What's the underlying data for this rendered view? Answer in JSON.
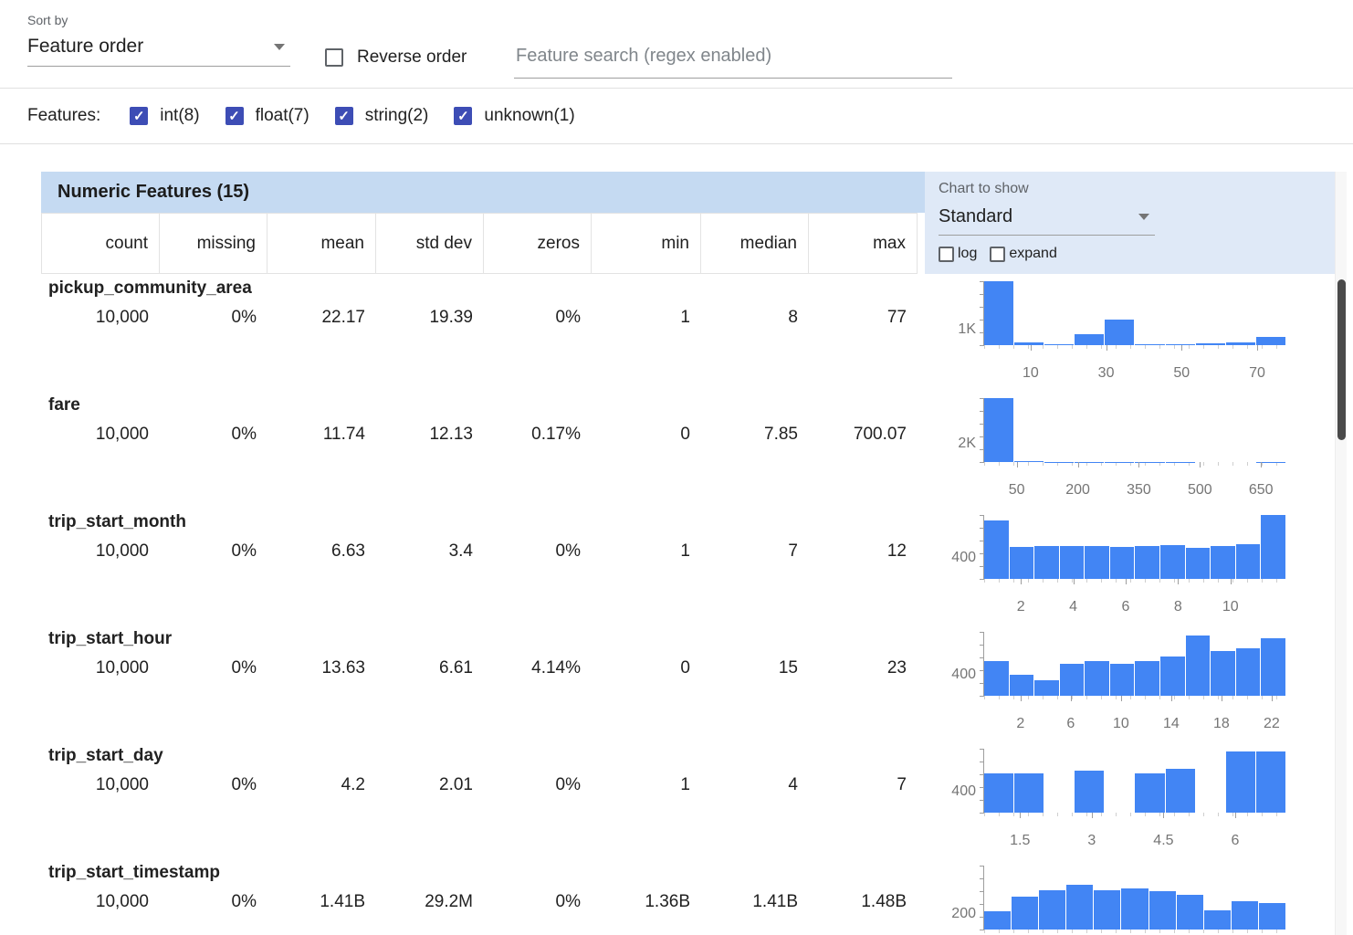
{
  "toolbar": {
    "sort_by_label": "Sort by",
    "sort_by_value": "Feature order",
    "reverse_order_label": "Reverse order",
    "search_placeholder": "Feature search (regex enabled)"
  },
  "features_bar": {
    "label": "Features:",
    "filters": [
      {
        "label": "int(8)",
        "checked": true
      },
      {
        "label": "float(7)",
        "checked": true
      },
      {
        "label": "string(2)",
        "checked": true
      },
      {
        "label": "unknown(1)",
        "checked": true
      }
    ]
  },
  "table": {
    "title": "Numeric Features (15)",
    "chart_controls": {
      "label": "Chart to show",
      "selected": "Standard",
      "options_checkboxes": [
        {
          "label": "log",
          "checked": false
        },
        {
          "label": "expand",
          "checked": false
        }
      ]
    },
    "columns": [
      "count",
      "missing",
      "mean",
      "std dev",
      "zeros",
      "min",
      "median",
      "max"
    ],
    "rows": [
      {
        "name": "pickup_community_area",
        "values": [
          "10,000",
          "0%",
          "22.17",
          "19.39",
          "0%",
          "1",
          "8",
          "77"
        ]
      },
      {
        "name": "fare",
        "values": [
          "10,000",
          "0%",
          "11.74",
          "12.13",
          "0.17%",
          "0",
          "7.85",
          "700.07"
        ]
      },
      {
        "name": "trip_start_month",
        "values": [
          "10,000",
          "0%",
          "6.63",
          "3.4",
          "0%",
          "1",
          "7",
          "12"
        ]
      },
      {
        "name": "trip_start_hour",
        "values": [
          "10,000",
          "0%",
          "13.63",
          "6.61",
          "4.14%",
          "0",
          "15",
          "23"
        ]
      },
      {
        "name": "trip_start_day",
        "values": [
          "10,000",
          "0%",
          "4.2",
          "2.01",
          "0%",
          "1",
          "4",
          "7"
        ]
      },
      {
        "name": "trip_start_timestamp",
        "values": [
          "10,000",
          "0%",
          "1.41B",
          "29.2M",
          "0%",
          "1.36B",
          "1.41B",
          "1.48B"
        ]
      }
    ]
  },
  "colors": {
    "accent_indigo": "#3d4db5",
    "histogram_bar_blue": "#4285f4",
    "table_header_band": "#c5daf2",
    "chart_panel_band": "#dfe9f7"
  },
  "chart_data": [
    {
      "type": "bar",
      "feature": "pickup_community_area",
      "x_range": [
        -2.3,
        77.5
      ],
      "x_ticks": [
        {
          "label": "10",
          "value": 10
        },
        {
          "label": "30",
          "value": 30
        },
        {
          "label": "50",
          "value": 50
        },
        {
          "label": "70",
          "value": 70
        }
      ],
      "y_tick": {
        "label": "1K",
        "pos": 0.24
      },
      "bars": [
        1.0,
        0.04,
        0.02,
        0.17,
        0.4,
        0.02,
        0.01,
        0.03,
        0.04,
        0.13
      ]
    },
    {
      "type": "bar",
      "feature": "fare",
      "x_range": [
        -30,
        710
      ],
      "x_ticks": [
        {
          "label": "50",
          "value": 50
        },
        {
          "label": "200",
          "value": 200
        },
        {
          "label": "350",
          "value": 350
        },
        {
          "label": "500",
          "value": 500
        },
        {
          "label": "650",
          "value": 650
        }
      ],
      "y_tick": {
        "label": "2K",
        "pos": 0.29
      },
      "bars": [
        1.0,
        0.012,
        0.006,
        0.004,
        0.003,
        0.002,
        0.002,
        0.001,
        0.001,
        0.002
      ]
    },
    {
      "type": "bar",
      "feature": "trip_start_month",
      "x_range": [
        0.6,
        12.1
      ],
      "x_ticks": [
        {
          "label": "2",
          "value": 2
        },
        {
          "label": "4",
          "value": 4
        },
        {
          "label": "6",
          "value": 6
        },
        {
          "label": "8",
          "value": 8
        },
        {
          "label": "10",
          "value": 10
        }
      ],
      "y_tick": {
        "label": "400",
        "pos": 0.33
      },
      "bars": [
        0.92,
        0.5,
        0.51,
        0.51,
        0.52,
        0.5,
        0.51,
        0.53,
        0.48,
        0.52,
        0.55,
        1.0
      ]
    },
    {
      "type": "bar",
      "feature": "trip_start_hour",
      "x_range": [
        -0.9,
        23.1
      ],
      "x_ticks": [
        {
          "label": "2",
          "value": 2
        },
        {
          "label": "6",
          "value": 6
        },
        {
          "label": "10",
          "value": 10
        },
        {
          "label": "14",
          "value": 14
        },
        {
          "label": "18",
          "value": 18
        },
        {
          "label": "22",
          "value": 22
        }
      ],
      "y_tick": {
        "label": "400",
        "pos": 0.33
      },
      "bars": [
        0.55,
        0.33,
        0.25,
        0.5,
        0.55,
        0.5,
        0.55,
        0.62,
        0.95,
        0.7,
        0.75,
        0.9
      ]
    },
    {
      "type": "bar",
      "feature": "trip_start_day",
      "x_range": [
        0.75,
        7.05
      ],
      "x_ticks": [
        {
          "label": "1.5",
          "value": 1.5
        },
        {
          "label": "3",
          "value": 3
        },
        {
          "label": "4.5",
          "value": 4.5
        },
        {
          "label": "6",
          "value": 6
        }
      ],
      "y_tick": {
        "label": "400",
        "pos": 0.33
      },
      "bars": [
        0.62,
        0.62,
        0,
        0.66,
        0,
        0.62,
        0.68,
        0,
        0.96,
        0.96
      ]
    },
    {
      "type": "bar",
      "feature": "trip_start_timestamp",
      "x_range": [
        0,
        1
      ],
      "x_ticks": [],
      "y_tick": {
        "label": "200",
        "pos": 0.24
      },
      "bars": [
        0.28,
        0.52,
        0.62,
        0.7,
        0.62,
        0.64,
        0.6,
        0.55,
        0.3,
        0.45,
        0.42
      ]
    }
  ]
}
